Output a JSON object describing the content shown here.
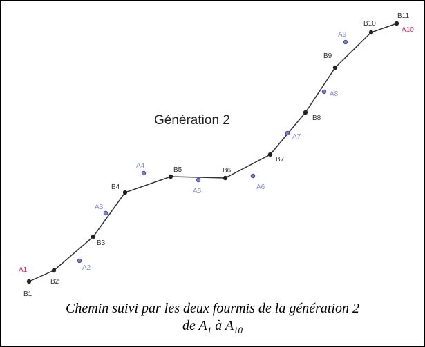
{
  "title": "Génération 2",
  "b_points": [
    "B1",
    "B2",
    "B3",
    "B4",
    "B5",
    "B6",
    "B7",
    "B8",
    "B9",
    "B10",
    "B11"
  ],
  "a_points": [
    "A1",
    "A2",
    "A3",
    "A4",
    "A5",
    "A6",
    "A7",
    "A8",
    "A9",
    "A10"
  ],
  "caption": {
    "line1": "Chemin suivi par les deux fourmis de la génération 2",
    "line2": {
      "prefix": "de",
      "start": "A",
      "start_sub": "1",
      "mid": "à",
      "end": "A",
      "end_sub": "10"
    }
  }
}
